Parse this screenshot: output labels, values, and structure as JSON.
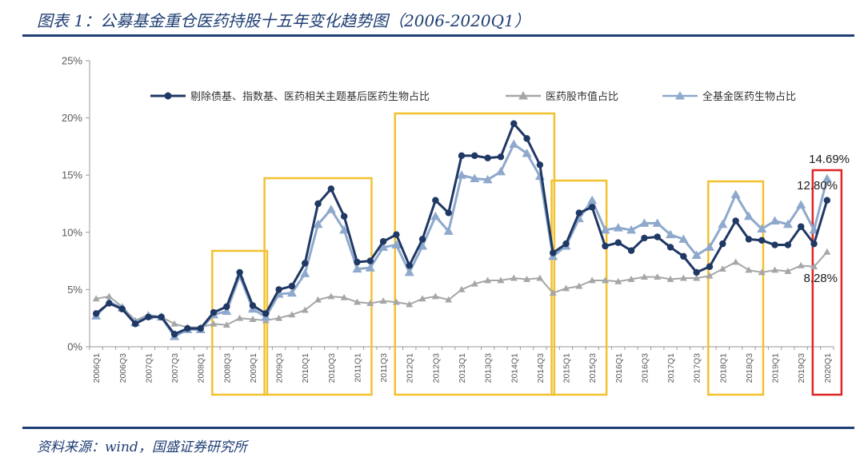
{
  "header": {
    "title": "图表 1：公募基金重仓医药持股十五年变化趋势图（2006-2020Q1）"
  },
  "footer": {
    "source": "资料来源：wind，国盛证券研究所"
  },
  "chart_data": {
    "type": "line",
    "title": "图表 1：公募基金重仓医药持股十五年变化趋势图（2006-2020Q1）",
    "xlabel": "",
    "ylabel": "",
    "ylim": [
      0,
      25
    ],
    "y_ticks": [
      "0%",
      "5%",
      "10%",
      "15%",
      "20%",
      "25%"
    ],
    "grid": false,
    "legend_position": "top",
    "x_tick_labels": [
      "2006Q1",
      "2006Q3",
      "2007Q1",
      "2007Q3",
      "2008Q1",
      "2008Q3",
      "2009Q1",
      "2009Q3",
      "2010Q1",
      "2010Q3",
      "2011Q1",
      "2011Q3",
      "2012Q1",
      "2012Q3",
      "2013Q1",
      "2013Q3",
      "2014Q1",
      "2014Q3",
      "2015Q1",
      "2015Q3",
      "2016Q1",
      "2016Q3",
      "2017Q1",
      "2017Q3",
      "2018Q1",
      "2018Q3",
      "2019Q1",
      "2019Q3",
      "2020Q1"
    ],
    "x_count": 57,
    "series": [
      {
        "name": "剔除债基、指数基、医药相关主题基后医药生物占比",
        "color": "#1F3864",
        "marker": "circle",
        "values": [
          2.9,
          3.8,
          3.3,
          2.0,
          2.6,
          2.6,
          1.1,
          1.6,
          1.6,
          3.0,
          3.5,
          6.5,
          3.6,
          2.9,
          5.0,
          5.3,
          7.3,
          12.5,
          13.8,
          11.4,
          7.4,
          7.5,
          9.2,
          9.8,
          7.1,
          9.4,
          12.8,
          11.7,
          16.7,
          16.7,
          16.5,
          16.6,
          19.5,
          18.2,
          15.9,
          8.2,
          9.0,
          11.7,
          12.2,
          8.8,
          9.1,
          8.4,
          9.5,
          9.6,
          8.7,
          7.9,
          6.5,
          7.0,
          9.0,
          11.0,
          9.4,
          9.3,
          8.9,
          8.9,
          10.5,
          9.0,
          12.8
        ]
      },
      {
        "name": "医药股市值占比",
        "color": "#A6A6A6",
        "marker": "triangle",
        "values": [
          4.2,
          4.4,
          3.5,
          2.3,
          2.8,
          2.6,
          2.0,
          1.7,
          1.7,
          2.0,
          1.9,
          2.5,
          2.4,
          2.3,
          2.5,
          2.8,
          3.2,
          4.1,
          4.4,
          4.3,
          3.9,
          3.8,
          4.0,
          3.9,
          3.7,
          4.2,
          4.4,
          4.1,
          5.0,
          5.5,
          5.8,
          5.8,
          6.0,
          5.9,
          6.0,
          4.7,
          5.1,
          5.3,
          5.8,
          5.8,
          5.7,
          5.9,
          6.1,
          6.1,
          5.9,
          6.0,
          6.0,
          6.2,
          6.8,
          7.4,
          6.7,
          6.5,
          6.7,
          6.6,
          7.1,
          7.0,
          8.28
        ]
      },
      {
        "name": "全基金医药生物占比",
        "color": "#8EA9CC",
        "marker": "triangle",
        "values": [
          2.7,
          3.9,
          3.4,
          2.1,
          2.7,
          2.6,
          0.9,
          1.5,
          1.5,
          2.8,
          3.1,
          6.2,
          3.3,
          2.6,
          4.6,
          4.7,
          6.4,
          10.7,
          12.0,
          10.2,
          6.8,
          6.9,
          8.7,
          8.9,
          6.5,
          8.8,
          11.4,
          10.1,
          15.0,
          14.7,
          14.6,
          15.3,
          17.7,
          16.9,
          14.9,
          7.9,
          8.8,
          11.2,
          12.8,
          10.2,
          10.4,
          10.2,
          10.8,
          10.8,
          9.8,
          9.4,
          8.0,
          8.7,
          10.7,
          13.3,
          11.4,
          10.3,
          11.0,
          10.7,
          12.4,
          10.2,
          14.69
        ]
      }
    ],
    "annotations": {
      "labels": [
        "14.69%",
        "12.80%",
        "8.28%"
      ],
      "highlight_boxes": [
        {
          "from": "2008Q3",
          "to": "2009Q1",
          "color": "#F2C12E"
        },
        {
          "from": "2009Q3",
          "to": "2011Q1",
          "color": "#F2C12E"
        },
        {
          "from": "2012Q1",
          "to": "2014Q3",
          "color": "#F2C12E"
        },
        {
          "from": "2015Q1",
          "to": "2015Q3",
          "color": "#F2C12E"
        },
        {
          "from": "2018Q1",
          "to": "2018Q3",
          "color": "#F2C12E"
        },
        {
          "from": "2020Q1",
          "to": "2020Q1",
          "color": "#E02424"
        }
      ]
    }
  }
}
